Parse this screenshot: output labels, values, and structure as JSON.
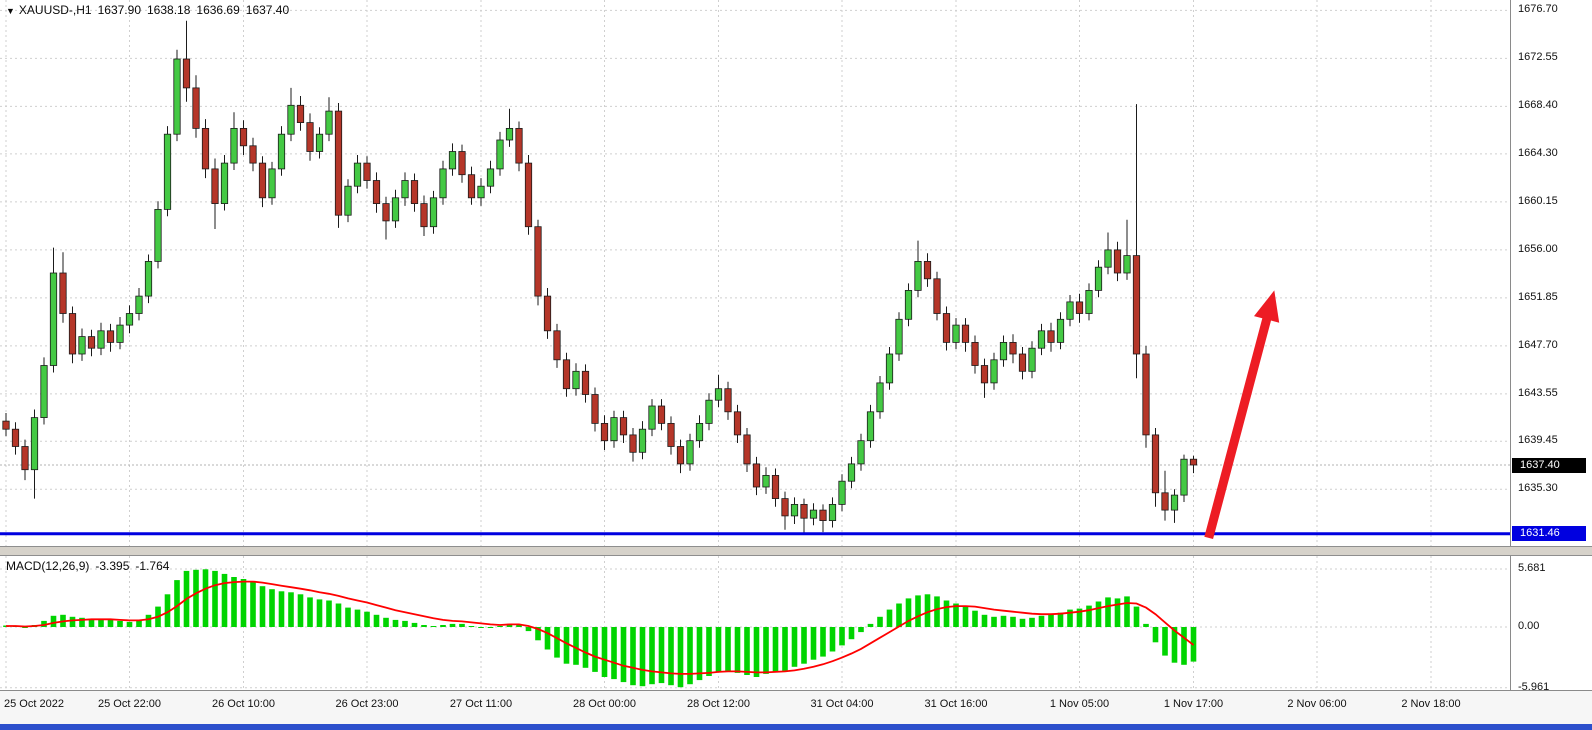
{
  "window": {
    "bottom_bar_color": "#2d50cc"
  },
  "header": {
    "dropdown_icon": "▼",
    "symbol": "XAUUSD-,H1",
    "open": "1637.90",
    "high": "1638.18",
    "low": "1636.69",
    "close": "1637.40"
  },
  "price_axis": {
    "labels": [
      "1676.70",
      "1672.55",
      "1668.40",
      "1664.30",
      "1660.15",
      "1656.00",
      "1651.85",
      "1647.70",
      "1643.55",
      "1639.45",
      "1635.30"
    ],
    "current_badge": {
      "text": "1637.40",
      "bg": "#000000",
      "fg": "#ffffff"
    },
    "support_badge": {
      "text": "1631.46",
      "bg": "#0000e0",
      "fg": "#ffffff"
    }
  },
  "time_axis": {
    "labels": [
      {
        "text": "25 Oct 2022",
        "index": 0
      },
      {
        "text": "25 Oct 22:00",
        "index": 13
      },
      {
        "text": "26 Oct 10:00",
        "index": 25
      },
      {
        "text": "26 Oct 23:00",
        "index": 38
      },
      {
        "text": "27 Oct 11:00",
        "index": 50
      },
      {
        "text": "28 Oct 00:00",
        "index": 63
      },
      {
        "text": "28 Oct 12:00",
        "index": 75
      },
      {
        "text": "31 Oct 04:00",
        "index": 88
      },
      {
        "text": "31 Oct 16:00",
        "index": 100
      },
      {
        "text": "1 Nov 05:00",
        "index": 113
      },
      {
        "text": "1 Nov 17:00",
        "index": 125
      },
      {
        "text": "2 Nov 06:00",
        "index": 138
      },
      {
        "text": "2 Nov 18:00",
        "index": 150
      }
    ]
  },
  "indicator": {
    "label": "MACD(12,26,9)",
    "value": "-3.395",
    "signal_value": "-1.764",
    "axis_labels": [
      "5.681",
      "0.00",
      "-5.961"
    ]
  },
  "style": {
    "bull_fill": "#44c944",
    "bear_fill": "#b53629",
    "wick_color": "#1b1b1b",
    "histogram_color": "#00d400",
    "signal_color": "#ff0000",
    "support_color": "#0000e0",
    "arrow_color": "#ed1c24"
  },
  "chart_data": {
    "type": "candlestick",
    "symbol": "XAUUSD-",
    "timeframe": "H1",
    "main": {
      "ylim": [
        1630.4,
        1677.6
      ],
      "current_price": 1637.4,
      "support_line_price": 1631.46,
      "annotation_arrow": {
        "from_x_index": 126.6,
        "from_price": 1631.1,
        "to_x_index": 133.5,
        "to_price": 1652.5
      },
      "candles": [
        [
          1641.2,
          1641.9,
          1639.9,
          1640.5
        ],
        [
          1640.5,
          1641.1,
          1638.3,
          1639.0
        ],
        [
          1639.0,
          1639.6,
          1636.1,
          1637.0
        ],
        [
          1637.0,
          1642.2,
          1634.5,
          1641.5
        ],
        [
          1641.5,
          1646.7,
          1640.9,
          1646.0
        ],
        [
          1646.0,
          1656.2,
          1645.4,
          1654.0
        ],
        [
          1654.0,
          1655.8,
          1649.7,
          1650.5
        ],
        [
          1650.5,
          1651.1,
          1646.2,
          1647.0
        ],
        [
          1647.0,
          1649.2,
          1646.4,
          1648.5
        ],
        [
          1648.5,
          1649.1,
          1646.8,
          1647.5
        ],
        [
          1647.5,
          1649.7,
          1646.9,
          1649.0
        ],
        [
          1649.0,
          1649.6,
          1647.2,
          1648.0
        ],
        [
          1648.0,
          1650.2,
          1647.4,
          1649.5
        ],
        [
          1649.5,
          1651.2,
          1648.8,
          1650.5
        ],
        [
          1650.5,
          1652.7,
          1649.9,
          1652.0
        ],
        [
          1652.0,
          1655.6,
          1651.4,
          1655.0
        ],
        [
          1655.0,
          1660.2,
          1654.4,
          1659.5
        ],
        [
          1659.5,
          1666.7,
          1658.9,
          1666.0
        ],
        [
          1666.0,
          1673.3,
          1665.4,
          1672.5
        ],
        [
          1672.5,
          1675.8,
          1668.8,
          1670.0
        ],
        [
          1670.0,
          1671.1,
          1665.7,
          1666.5
        ],
        [
          1666.5,
          1667.3,
          1662.2,
          1663.0
        ],
        [
          1663.0,
          1663.9,
          1657.8,
          1660.0
        ],
        [
          1660.0,
          1664.2,
          1659.4,
          1663.5
        ],
        [
          1663.5,
          1667.9,
          1662.9,
          1666.5
        ],
        [
          1666.5,
          1667.2,
          1664.2,
          1665.0
        ],
        [
          1665.0,
          1665.7,
          1662.8,
          1663.5
        ],
        [
          1663.5,
          1664.1,
          1659.7,
          1660.5
        ],
        [
          1660.5,
          1663.6,
          1659.9,
          1663.0
        ],
        [
          1663.0,
          1666.7,
          1662.4,
          1666.0
        ],
        [
          1666.0,
          1670.0,
          1665.4,
          1668.5
        ],
        [
          1668.5,
          1669.3,
          1666.3,
          1667.0
        ],
        [
          1667.0,
          1667.8,
          1663.7,
          1664.5
        ],
        [
          1664.5,
          1666.6,
          1663.9,
          1666.0
        ],
        [
          1666.0,
          1669.2,
          1665.4,
          1668.0
        ],
        [
          1668.0,
          1668.7,
          1657.9,
          1659.0
        ],
        [
          1659.0,
          1662.1,
          1658.4,
          1661.5
        ],
        [
          1661.5,
          1664.2,
          1660.9,
          1663.5
        ],
        [
          1663.5,
          1664.1,
          1661.3,
          1662.0
        ],
        [
          1662.0,
          1662.7,
          1659.2,
          1660.0
        ],
        [
          1660.0,
          1660.6,
          1656.9,
          1658.5
        ],
        [
          1658.5,
          1661.2,
          1657.9,
          1660.5
        ],
        [
          1660.5,
          1662.7,
          1659.8,
          1662.0
        ],
        [
          1662.0,
          1662.6,
          1659.3,
          1660.0
        ],
        [
          1660.0,
          1660.7,
          1657.2,
          1658.0
        ],
        [
          1658.0,
          1661.1,
          1657.4,
          1660.5
        ],
        [
          1660.5,
          1663.7,
          1659.9,
          1663.0
        ],
        [
          1663.0,
          1665.2,
          1662.4,
          1664.5
        ],
        [
          1664.5,
          1665.1,
          1661.8,
          1662.5
        ],
        [
          1662.5,
          1663.2,
          1659.9,
          1660.5
        ],
        [
          1660.5,
          1662.2,
          1659.8,
          1661.5
        ],
        [
          1661.5,
          1663.7,
          1660.9,
          1663.0
        ],
        [
          1663.0,
          1666.2,
          1662.4,
          1665.5
        ],
        [
          1665.5,
          1668.2,
          1664.9,
          1666.5
        ],
        [
          1666.5,
          1667.1,
          1662.8,
          1663.5
        ],
        [
          1663.5,
          1664.2,
          1657.3,
          1658.0
        ],
        [
          1658.0,
          1658.6,
          1651.2,
          1652.0
        ],
        [
          1652.0,
          1652.7,
          1648.3,
          1649.0
        ],
        [
          1649.0,
          1649.6,
          1645.8,
          1646.5
        ],
        [
          1646.5,
          1647.1,
          1643.3,
          1644.0
        ],
        [
          1644.0,
          1646.2,
          1643.4,
          1645.5
        ],
        [
          1645.5,
          1646.1,
          1642.8,
          1643.5
        ],
        [
          1643.5,
          1644.1,
          1640.3,
          1641.0
        ],
        [
          1641.0,
          1641.7,
          1638.7,
          1639.5
        ],
        [
          1639.5,
          1642.1,
          1638.9,
          1641.5
        ],
        [
          1641.5,
          1642.1,
          1639.3,
          1640.0
        ],
        [
          1640.0,
          1640.6,
          1637.7,
          1638.5
        ],
        [
          1638.5,
          1641.2,
          1637.9,
          1640.5
        ],
        [
          1640.5,
          1643.1,
          1639.9,
          1642.5
        ],
        [
          1642.5,
          1643.1,
          1640.4,
          1641.0
        ],
        [
          1641.0,
          1641.6,
          1638.3,
          1639.0
        ],
        [
          1639.0,
          1639.6,
          1636.7,
          1637.5
        ],
        [
          1637.5,
          1640.1,
          1636.9,
          1639.5
        ],
        [
          1639.5,
          1641.7,
          1638.9,
          1641.0
        ],
        [
          1641.0,
          1643.6,
          1640.4,
          1643.0
        ],
        [
          1643.0,
          1645.2,
          1642.4,
          1644.0
        ],
        [
          1644.0,
          1644.6,
          1641.3,
          1642.0
        ],
        [
          1642.0,
          1642.6,
          1639.3,
          1640.0
        ],
        [
          1640.0,
          1640.6,
          1636.8,
          1637.5
        ],
        [
          1637.5,
          1638.1,
          1634.8,
          1635.5
        ],
        [
          1635.5,
          1637.2,
          1634.9,
          1636.5
        ],
        [
          1636.5,
          1637.1,
          1633.8,
          1634.5
        ],
        [
          1634.5,
          1635.1,
          1631.8,
          1633.0
        ],
        [
          1633.0,
          1634.6,
          1632.3,
          1634.0
        ],
        [
          1634.0,
          1634.5,
          1631.5,
          1632.8
        ],
        [
          1632.8,
          1634.1,
          1632.2,
          1633.5
        ],
        [
          1633.5,
          1634.0,
          1631.6,
          1632.6
        ],
        [
          1632.6,
          1634.6,
          1632.0,
          1634.0
        ],
        [
          1634.0,
          1636.6,
          1633.4,
          1636.0
        ],
        [
          1636.0,
          1638.1,
          1635.4,
          1637.5
        ],
        [
          1637.5,
          1640.1,
          1636.9,
          1639.5
        ],
        [
          1639.5,
          1642.6,
          1638.9,
          1642.0
        ],
        [
          1642.0,
          1645.1,
          1641.4,
          1644.5
        ],
        [
          1644.5,
          1647.6,
          1643.9,
          1647.0
        ],
        [
          1647.0,
          1650.6,
          1646.4,
          1650.0
        ],
        [
          1650.0,
          1653.1,
          1649.4,
          1652.5
        ],
        [
          1652.5,
          1656.8,
          1651.9,
          1655.0
        ],
        [
          1655.0,
          1655.7,
          1652.8,
          1653.5
        ],
        [
          1653.5,
          1654.1,
          1649.9,
          1650.5
        ],
        [
          1650.5,
          1651.1,
          1647.3,
          1648.0
        ],
        [
          1648.0,
          1650.1,
          1647.4,
          1649.5
        ],
        [
          1649.5,
          1650.1,
          1647.2,
          1648.0
        ],
        [
          1648.0,
          1648.6,
          1645.3,
          1646.0
        ],
        [
          1646.0,
          1646.6,
          1643.2,
          1644.5
        ],
        [
          1644.5,
          1647.1,
          1643.9,
          1646.5
        ],
        [
          1646.5,
          1648.6,
          1645.9,
          1648.0
        ],
        [
          1648.0,
          1648.7,
          1646.2,
          1647.0
        ],
        [
          1647.0,
          1647.6,
          1644.8,
          1645.5
        ],
        [
          1645.5,
          1648.1,
          1644.9,
          1647.5
        ],
        [
          1647.5,
          1649.6,
          1646.9,
          1649.0
        ],
        [
          1649.0,
          1649.7,
          1647.2,
          1648.0
        ],
        [
          1648.0,
          1650.6,
          1647.4,
          1650.0
        ],
        [
          1650.0,
          1652.1,
          1649.4,
          1651.5
        ],
        [
          1651.5,
          1652.2,
          1649.7,
          1650.5
        ],
        [
          1650.5,
          1653.1,
          1649.9,
          1652.5
        ],
        [
          1652.5,
          1655.1,
          1651.9,
          1654.5
        ],
        [
          1654.5,
          1657.5,
          1653.9,
          1656.0
        ],
        [
          1656.0,
          1656.7,
          1653.3,
          1654.0
        ],
        [
          1654.0,
          1658.6,
          1653.4,
          1655.5
        ],
        [
          1655.5,
          1668.6,
          1644.9,
          1647.0
        ],
        [
          1647.0,
          1647.7,
          1638.9,
          1640.0
        ],
        [
          1640.0,
          1640.6,
          1633.8,
          1635.0
        ],
        [
          1635.0,
          1636.9,
          1632.6,
          1633.5
        ],
        [
          1633.5,
          1635.3,
          1632.4,
          1634.8
        ],
        [
          1634.8,
          1638.3,
          1634.2,
          1637.9
        ],
        [
          1637.9,
          1638.2,
          1636.7,
          1637.4
        ]
      ]
    },
    "macd": {
      "ylim": [
        -6.07,
        6.95
      ],
      "histogram": [
        0.15,
        0.1,
        -0.1,
        0.2,
        0.6,
        1.1,
        1.2,
        1.0,
        0.9,
        0.8,
        0.8,
        0.7,
        0.6,
        0.5,
        0.7,
        1.2,
        2.0,
        3.2,
        4.6,
        5.5,
        5.6,
        5.65,
        5.5,
        5.2,
        4.9,
        4.7,
        4.4,
        4.0,
        3.7,
        3.5,
        3.4,
        3.2,
        2.9,
        2.7,
        2.6,
        2.3,
        1.9,
        1.7,
        1.5,
        1.2,
        0.9,
        0.7,
        0.6,
        0.4,
        0.2,
        0.1,
        0.2,
        0.3,
        0.3,
        0.1,
        -0.1,
        -0.1,
        0.1,
        0.3,
        0.2,
        -0.4,
        -1.3,
        -2.2,
        -3.0,
        -3.6,
        -3.7,
        -4.0,
        -4.4,
        -4.9,
        -5.1,
        -5.4,
        -5.7,
        -5.8,
        -5.6,
        -5.5,
        -5.7,
        -5.9,
        -5.6,
        -5.2,
        -4.8,
        -4.4,
        -4.3,
        -4.5,
        -4.7,
        -4.9,
        -4.6,
        -4.4,
        -4.3,
        -3.9,
        -3.6,
        -3.2,
        -2.9,
        -2.4,
        -1.8,
        -1.2,
        -0.5,
        0.3,
        1.0,
        1.7,
        2.3,
        2.8,
        3.1,
        3.2,
        3.0,
        2.6,
        2.3,
        2.0,
        1.6,
        1.2,
        1.0,
        1.1,
        1.0,
        0.8,
        0.9,
        1.1,
        1.2,
        1.4,
        1.7,
        1.8,
        2.1,
        2.5,
        2.9,
        2.8,
        3.0,
        2.0,
        0.3,
        -1.5,
        -2.8,
        -3.5,
        -3.7,
        -3.395
      ],
      "signal": [
        0.1,
        0.1,
        0.05,
        0.1,
        0.2,
        0.4,
        0.55,
        0.65,
        0.7,
        0.75,
        0.75,
        0.75,
        0.7,
        0.65,
        0.65,
        0.75,
        1.0,
        1.45,
        2.05,
        2.75,
        3.3,
        3.75,
        4.1,
        4.3,
        4.4,
        4.45,
        4.45,
        4.35,
        4.2,
        4.05,
        3.9,
        3.75,
        3.6,
        3.4,
        3.25,
        3.05,
        2.8,
        2.6,
        2.4,
        2.15,
        1.9,
        1.65,
        1.45,
        1.25,
        1.05,
        0.85,
        0.7,
        0.6,
        0.55,
        0.45,
        0.35,
        0.25,
        0.2,
        0.25,
        0.25,
        0.1,
        -0.2,
        -0.6,
        -1.1,
        -1.6,
        -2.05,
        -2.5,
        -2.9,
        -3.2,
        -3.5,
        -3.8,
        -4.0,
        -4.2,
        -4.35,
        -4.45,
        -4.55,
        -4.6,
        -4.6,
        -4.55,
        -4.5,
        -4.4,
        -4.35,
        -4.35,
        -4.4,
        -4.45,
        -4.45,
        -4.4,
        -4.35,
        -4.25,
        -4.1,
        -3.9,
        -3.65,
        -3.35,
        -3.0,
        -2.6,
        -2.15,
        -1.6,
        -1.05,
        -0.5,
        0.05,
        0.6,
        1.05,
        1.45,
        1.75,
        1.95,
        2.05,
        2.05,
        2.0,
        1.85,
        1.7,
        1.6,
        1.5,
        1.4,
        1.3,
        1.25,
        1.25,
        1.3,
        1.4,
        1.5,
        1.65,
        1.85,
        2.05,
        2.2,
        2.35,
        2.3,
        1.9,
        1.25,
        0.45,
        -0.35,
        -1.05,
        -1.764
      ]
    }
  }
}
